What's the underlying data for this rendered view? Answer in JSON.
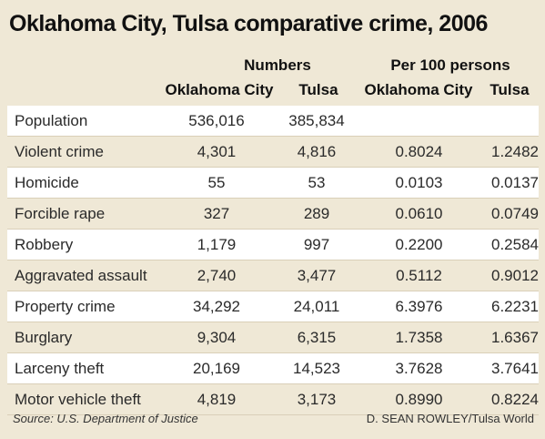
{
  "chart_data": {
    "type": "table",
    "title": "Oklahoma City, Tulsa comparative crime, 2006",
    "column_groups": [
      "Numbers",
      "Per 100 persons"
    ],
    "columns": [
      "Oklahoma City",
      "Tulsa",
      "Oklahoma City",
      "Tulsa"
    ],
    "rows": [
      {
        "label": "Population",
        "values": [
          "536,016",
          "385,834",
          "",
          ""
        ]
      },
      {
        "label": "Violent crime",
        "values": [
          "4,301",
          "4,816",
          "0.8024",
          "1.2482"
        ]
      },
      {
        "label": "Homicide",
        "values": [
          "55",
          "53",
          "0.0103",
          "0.0137"
        ]
      },
      {
        "label": "Forcible rape",
        "values": [
          "327",
          "289",
          "0.0610",
          "0.0749"
        ]
      },
      {
        "label": "Robbery",
        "values": [
          "1,179",
          "997",
          "0.2200",
          "0.2584"
        ]
      },
      {
        "label": "Aggravated assault",
        "values": [
          "2,740",
          "3,477",
          "0.5112",
          "0.9012"
        ]
      },
      {
        "label": "Property crime",
        "values": [
          "34,292",
          "24,011",
          "6.3976",
          "6.2231"
        ]
      },
      {
        "label": "Burglary",
        "values": [
          "9,304",
          "6,315",
          "1.7358",
          "1.6367"
        ]
      },
      {
        "label": "Larceny theft",
        "values": [
          "20,169",
          "14,523",
          "3.7628",
          "3.7641"
        ]
      },
      {
        "label": "Motor vehicle theft",
        "values": [
          "4,819",
          "3,173",
          "0.8990",
          "0.8224"
        ]
      }
    ],
    "source": "Source: U.S. Department of Justice",
    "credit": "D. SEAN ROWLEY/Tulsa World"
  },
  "colors": {
    "background": "#efe8d6",
    "row_highlight": "#ffffff",
    "text": "#222222"
  }
}
